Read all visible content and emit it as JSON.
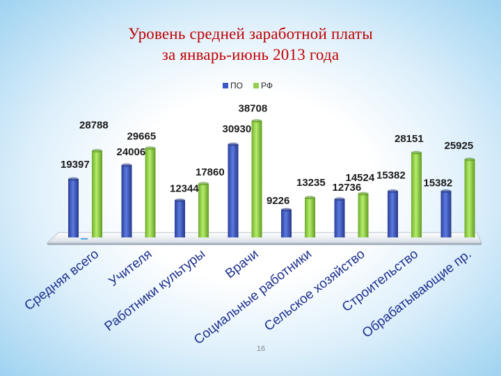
{
  "slide": {
    "title_line1": "Уровень средней заработной платы",
    "title_line2": "за январь-июнь 2013 года",
    "page_number": "16"
  },
  "chart_data": {
    "type": "bar",
    "title": "",
    "categories": [
      "Средняя всего",
      "Учителя",
      "Работники культуры",
      "Врачи",
      "Социальные работники",
      "Сельское хозяйство",
      "Строительство",
      "Обрабатывающие пр."
    ],
    "series": [
      {
        "name": "ПО",
        "color": "#3b57c4",
        "values": [
          19397,
          24006,
          12344,
          30930,
          9226,
          12736,
          15382,
          15382
        ]
      },
      {
        "name": "РФ",
        "color": "#92d050",
        "values": [
          28788,
          29665,
          17860,
          38708,
          13235,
          14524,
          28151,
          25925
        ]
      }
    ],
    "value_labels_po": [
      "19397",
      "24006",
      "12344",
      "30930",
      "9226",
      "12736",
      "15382",
      "15382"
    ],
    "value_labels_rf": [
      "28788",
      "29665",
      "17860",
      "38708",
      "13235",
      "14524",
      "28151",
      "25925"
    ],
    "ylim": [
      0,
      40000
    ],
    "grid": false,
    "legend": "top"
  }
}
